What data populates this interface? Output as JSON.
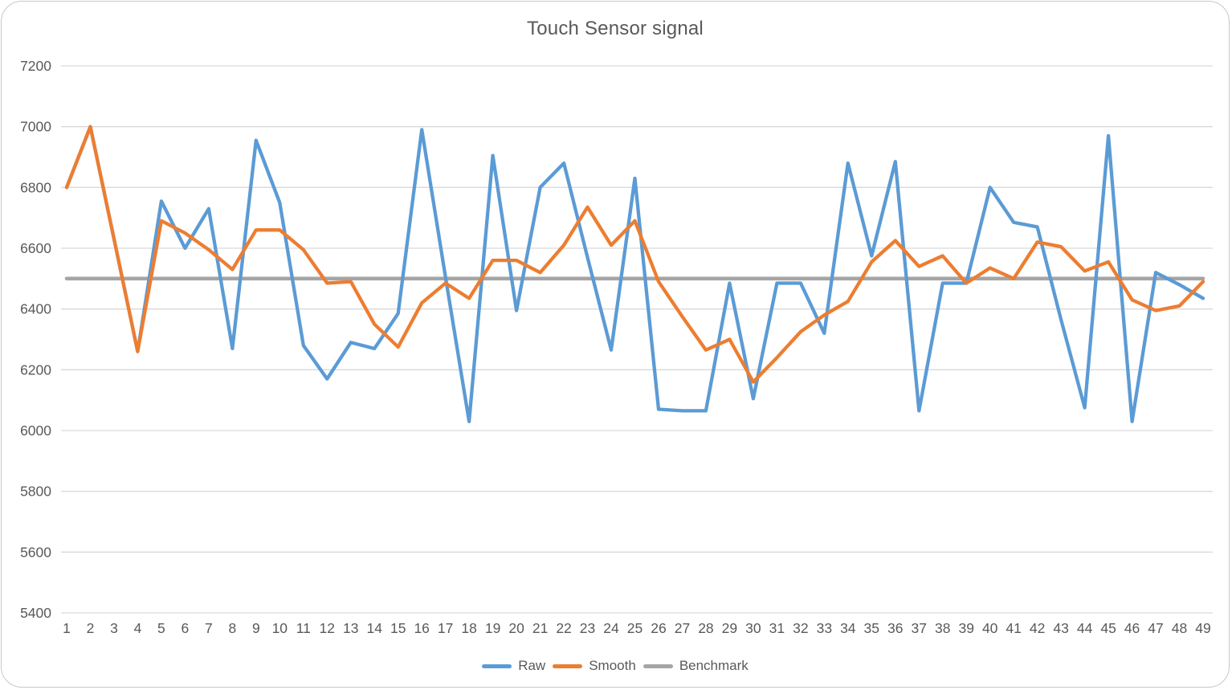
{
  "chart": {
    "title": "Touch Sensor signal",
    "text_color": "#595959",
    "grid_color": "#d9d9d9",
    "background": "#ffffff"
  },
  "chart_data": {
    "type": "line",
    "title": "Touch Sensor signal",
    "xlabel": "",
    "ylabel": "",
    "ylim": [
      5400,
      7200
    ],
    "ytick_step": 200,
    "grid": true,
    "legend_position": "bottom",
    "x": [
      1,
      2,
      3,
      4,
      5,
      6,
      7,
      8,
      9,
      10,
      11,
      12,
      13,
      14,
      15,
      16,
      17,
      18,
      19,
      20,
      21,
      22,
      23,
      24,
      25,
      26,
      27,
      28,
      29,
      30,
      31,
      32,
      33,
      34,
      35,
      36,
      37,
      38,
      39,
      40,
      41,
      42,
      43,
      44,
      45,
      46,
      47,
      48,
      49
    ],
    "series": [
      {
        "name": "Raw",
        "color": "#5B9BD5",
        "values": [
          6800,
          7000,
          6630,
          6260,
          6755,
          6600,
          6730,
          6270,
          6955,
          6750,
          6280,
          6170,
          6290,
          6270,
          6385,
          6990,
          6505,
          6030,
          6905,
          6395,
          6800,
          6880,
          6570,
          6265,
          6830,
          6070,
          6065,
          6065,
          6485,
          6105,
          6485,
          6485,
          6320,
          6880,
          6575,
          6885,
          6065,
          6485,
          6485,
          6800,
          6685,
          6670,
          6365,
          6075,
          6970,
          6030,
          6520,
          6480,
          6435
        ]
      },
      {
        "name": "Smooth",
        "color": "#ED7D31",
        "values": [
          6800,
          7000,
          6630,
          6260,
          6690,
          6650,
          6595,
          6530,
          6660,
          6660,
          6595,
          6485,
          6490,
          6350,
          6275,
          6420,
          6485,
          6435,
          6560,
          6560,
          6520,
          6610,
          6735,
          6610,
          6690,
          6490,
          6375,
          6265,
          6300,
          6160,
          6240,
          6325,
          6380,
          6425,
          6555,
          6625,
          6540,
          6575,
          6485,
          6535,
          6500,
          6620,
          6605,
          6525,
          6555,
          6430,
          6395,
          6410,
          6490
        ]
      },
      {
        "name": "Benchmark",
        "color": "#A5A5A5",
        "constant": 6500
      }
    ]
  }
}
